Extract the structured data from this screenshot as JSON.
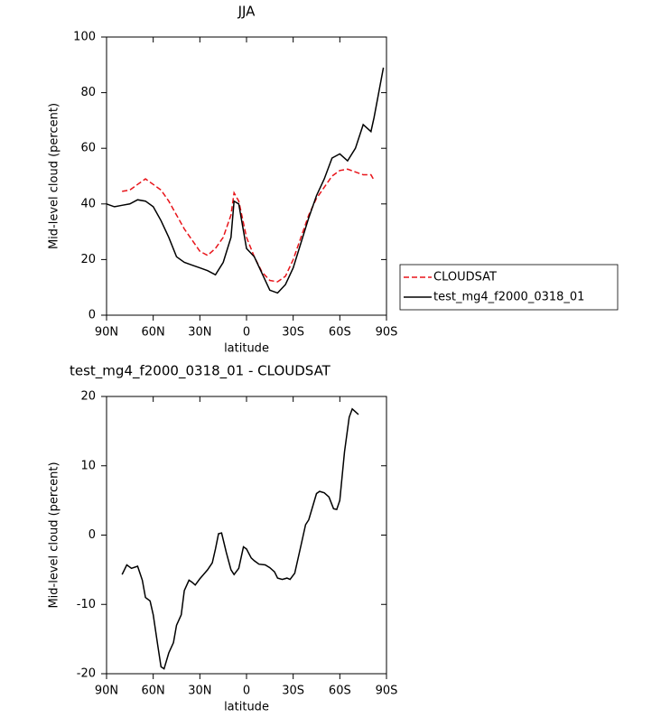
{
  "chart_data": [
    {
      "type": "line",
      "title": "JJA",
      "xlabel": "latitude",
      "ylabel": "Mid-level cloud (percent)",
      "x": [
        90,
        85,
        80,
        75,
        70,
        65,
        60,
        55,
        50,
        45,
        40,
        35,
        30,
        25,
        20,
        15,
        10,
        8,
        5,
        0,
        -5,
        -10,
        -15,
        -20,
        -25,
        -30,
        -35,
        -40,
        -45,
        -50,
        -55,
        -60,
        -65,
        -70,
        -75,
        -80,
        -82,
        -85,
        -88
      ],
      "series": [
        {
          "name": "CLOUDSAT",
          "color": "#e8141a",
          "dash": true,
          "values": [
            null,
            null,
            44.5,
            45,
            47,
            49,
            47,
            45,
            41,
            36,
            31,
            27,
            23,
            21.5,
            24,
            28,
            36,
            44,
            41,
            28,
            21,
            15.5,
            12.5,
            12,
            14,
            20,
            28,
            36,
            42,
            46,
            50,
            52,
            52.5,
            51.5,
            50.5,
            50.5,
            48.5,
            null,
            null
          ]
        },
        {
          "name": "test_mg4_f2000_0318_01",
          "color": "#000000",
          "dash": false,
          "values": [
            40,
            39,
            39.5,
            40,
            41.5,
            41,
            39,
            34,
            28,
            21,
            19,
            18,
            17,
            16,
            14.5,
            19,
            28,
            41,
            40,
            24,
            21,
            15,
            9,
            8,
            11,
            17,
            26,
            35,
            43,
            49,
            56.5,
            58,
            55.5,
            60,
            68.5,
            66,
            71,
            80,
            89
          ]
        }
      ],
      "xlim": [
        90,
        -90
      ],
      "xticks": [
        {
          "value": 90,
          "label": "90N"
        },
        {
          "value": 60,
          "label": "60N"
        },
        {
          "value": 30,
          "label": "30N"
        },
        0,
        {
          "value": -30,
          "label": "30S"
        },
        {
          "value": -60,
          "label": "60S"
        },
        {
          "value": -90,
          "label": "90S"
        }
      ],
      "ylim": [
        0,
        100
      ],
      "yticks": [
        0,
        20,
        40,
        60,
        80,
        100
      ],
      "legend": "right"
    },
    {
      "type": "line",
      "title": "test_mg4_f2000_0318_01 - CLOUDSAT",
      "xlabel": "latitude",
      "ylabel": "Mid-level cloud (percent)",
      "x": [
        80,
        77,
        74,
        70,
        67,
        65,
        62,
        60,
        57,
        55,
        53,
        50,
        47,
        45,
        42,
        40,
        37,
        35,
        33,
        30,
        25,
        22,
        20,
        18,
        16,
        13,
        10,
        8,
        5,
        2,
        0,
        -3,
        -5,
        -8,
        -12,
        -15,
        -18,
        -20,
        -23,
        -26,
        -28,
        -31,
        -35,
        -38,
        -40,
        -43,
        -45,
        -47,
        -50,
        -53,
        -56,
        -58,
        -60,
        -63,
        -66,
        -68,
        -70,
        -72
      ],
      "color": "#000000",
      "values": [
        -5.7,
        -4.3,
        -4.8,
        -4.5,
        -6.5,
        -9,
        -9.5,
        -11.5,
        -16,
        -19,
        -19.3,
        -17,
        -15.5,
        -13,
        -11.5,
        -8,
        -6.5,
        -6.8,
        -7.2,
        -6.3,
        -5,
        -4,
        -2,
        0.2,
        0.3,
        -2.5,
        -5,
        -5.7,
        -4.8,
        -1.7,
        -2,
        -3.3,
        -3.7,
        -4.2,
        -4.3,
        -4.7,
        -5.3,
        -6.2,
        -6.4,
        -6.2,
        -6.4,
        -5.5,
        -1.5,
        1.5,
        2.2,
        4.5,
        6,
        6.3,
        6.1,
        5.5,
        3.8,
        3.7,
        5,
        12,
        17,
        18.2,
        17.8,
        17.4
      ],
      "xlim": [
        90,
        -90
      ],
      "xticks": [
        {
          "value": 90,
          "label": "90N"
        },
        {
          "value": 60,
          "label": "60N"
        },
        {
          "value": 30,
          "label": "30N"
        },
        0,
        {
          "value": -30,
          "label": "30S"
        },
        {
          "value": -60,
          "label": "60S"
        },
        {
          "value": -90,
          "label": "90S"
        }
      ],
      "ylim": [
        -20,
        20
      ],
      "yticks": [
        -20,
        -10,
        0,
        10,
        20
      ]
    }
  ]
}
